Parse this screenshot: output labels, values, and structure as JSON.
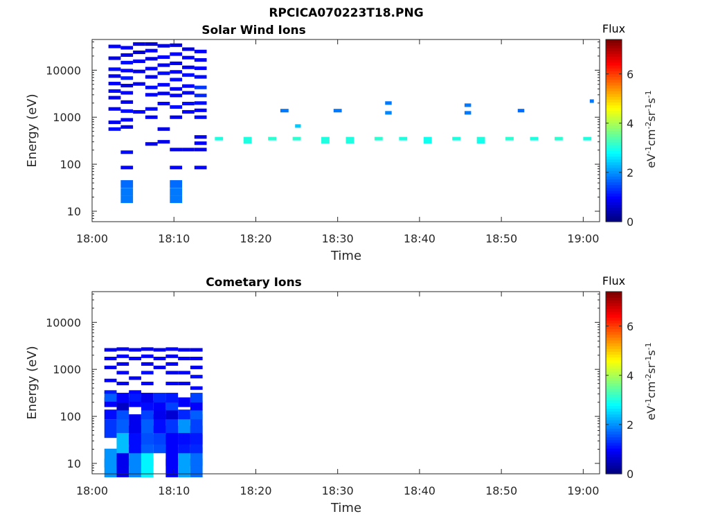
{
  "figure": {
    "title": "RPCICA070223T18.PNG"
  },
  "colorbar": {
    "label_top": "Flux",
    "unit_label": "eV-1cm-2sr-1s-1",
    "unit_parts": [
      {
        "text": "eV",
        "sup": false
      },
      {
        "text": "-1",
        "sup": true
      },
      {
        "text": "cm",
        "sup": false
      },
      {
        "text": "-2",
        "sup": true
      },
      {
        "text": "sr",
        "sup": false
      },
      {
        "text": "-1",
        "sup": true
      },
      {
        "text": "s",
        "sup": false
      },
      {
        "text": "-1",
        "sup": true
      }
    ],
    "range": [
      0,
      7.4
    ],
    "ticks": [
      0,
      2,
      4,
      6
    ],
    "tick_labels": [
      "0",
      "2",
      "4",
      "6"
    ]
  },
  "chart_data": [
    {
      "type": "heatmap",
      "title": "Solar Wind Ions",
      "xlabel": "Time",
      "ylabel": "Energy (eV)",
      "x_unit": "minutes after 18:00",
      "xlim": [
        0,
        62
      ],
      "ylim": [
        6,
        45000
      ],
      "yscale": "log",
      "xticks": [
        0,
        10,
        20,
        30,
        40,
        50,
        60
      ],
      "xtick_labels": [
        "18:00",
        "18:10",
        "18:20",
        "18:30",
        "18:40",
        "18:50",
        "19:00"
      ],
      "yticks": [
        10,
        100,
        1000,
        10000
      ],
      "ytick_labels": [
        "10",
        "100",
        "1000",
        "10000"
      ],
      "cells": [
        [
          2.0,
          3.5,
          560,
          1.0
        ],
        [
          2.0,
          3.5,
          780,
          0.8
        ],
        [
          2.0,
          3.5,
          1500,
          0.9
        ],
        [
          2.0,
          3.5,
          2600,
          0.8
        ],
        [
          2.0,
          3.5,
          3600,
          1.0
        ],
        [
          2.0,
          3.5,
          5200,
          0.9
        ],
        [
          2.0,
          3.5,
          7500,
          0.8
        ],
        [
          2.0,
          3.5,
          10500,
          1.0
        ],
        [
          2.0,
          3.5,
          18000,
          0.7
        ],
        [
          2.0,
          3.5,
          32000,
          0.9
        ],
        [
          3.5,
          5.0,
          18,
          1.8
        ],
        [
          3.5,
          5.0,
          26,
          1.8
        ],
        [
          3.5,
          5.0,
          38,
          1.7
        ],
        [
          3.5,
          5.0,
          85,
          0.9
        ],
        [
          3.5,
          5.0,
          180,
          1.0
        ],
        [
          3.5,
          5.0,
          620,
          0.8
        ],
        [
          3.5,
          5.0,
          880,
          0.9
        ],
        [
          3.5,
          5.0,
          1350,
          1.0
        ],
        [
          3.5,
          5.0,
          2100,
          0.8
        ],
        [
          3.5,
          5.0,
          3300,
          0.9
        ],
        [
          3.5,
          5.0,
          4700,
          0.7
        ],
        [
          3.5,
          5.0,
          6800,
          1.1
        ],
        [
          3.5,
          5.0,
          9800,
          0.9
        ],
        [
          3.5,
          5.0,
          14500,
          1.0
        ],
        [
          3.5,
          5.0,
          21000,
          0.8
        ],
        [
          3.5,
          5.0,
          30000,
          0.9
        ],
        [
          5.0,
          6.5,
          1300,
          0.9
        ],
        [
          5.0,
          6.5,
          5100,
          0.8
        ],
        [
          5.0,
          6.5,
          9400,
          0.7
        ],
        [
          5.0,
          6.5,
          15500,
          0.8
        ],
        [
          5.0,
          6.5,
          24000,
          0.6
        ],
        [
          5.0,
          6.5,
          36000,
          0.7
        ],
        [
          6.5,
          8.0,
          270,
          0.8
        ],
        [
          6.5,
          8.0,
          1000,
          0.9
        ],
        [
          6.5,
          8.0,
          1500,
          1.0
        ],
        [
          6.5,
          8.0,
          3000,
          0.9
        ],
        [
          6.5,
          8.0,
          4300,
          1.0
        ],
        [
          6.5,
          8.0,
          7200,
          0.8
        ],
        [
          6.5,
          8.0,
          10800,
          0.9
        ],
        [
          6.5,
          8.0,
          17500,
          0.7
        ],
        [
          6.5,
          8.0,
          26000,
          0.9
        ],
        [
          6.5,
          8.0,
          36000,
          0.6
        ],
        [
          8.0,
          9.5,
          300,
          0.8
        ],
        [
          8.0,
          9.5,
          560,
          0.7
        ],
        [
          8.0,
          9.5,
          1950,
          0.9
        ],
        [
          8.0,
          9.5,
          3200,
          0.8
        ],
        [
          8.0,
          9.5,
          4900,
          0.9
        ],
        [
          8.0,
          9.5,
          8600,
          1.0
        ],
        [
          8.0,
          9.5,
          12800,
          0.8
        ],
        [
          8.0,
          9.5,
          19000,
          0.9
        ],
        [
          8.0,
          9.5,
          33000,
          0.7
        ],
        [
          9.5,
          11.0,
          18,
          1.8
        ],
        [
          9.5,
          11.0,
          26,
          1.8
        ],
        [
          9.5,
          11.0,
          38,
          1.7
        ],
        [
          9.5,
          11.0,
          85,
          0.9
        ],
        [
          9.5,
          11.0,
          205,
          0.8
        ],
        [
          9.5,
          11.0,
          1000,
          0.8
        ],
        [
          9.5,
          11.0,
          1650,
          1.0
        ],
        [
          9.5,
          11.0,
          2900,
          0.9
        ],
        [
          9.5,
          11.0,
          4000,
          0.8
        ],
        [
          9.5,
          11.0,
          6300,
          1.0
        ],
        [
          9.5,
          11.0,
          9200,
          0.9
        ],
        [
          9.5,
          11.0,
          14000,
          0.8
        ],
        [
          9.5,
          11.0,
          22000,
          0.9
        ],
        [
          9.5,
          11.0,
          34000,
          0.7
        ],
        [
          11.0,
          12.5,
          205,
          0.8
        ],
        [
          11.0,
          12.5,
          1300,
          0.9
        ],
        [
          11.0,
          12.5,
          1950,
          1.0
        ],
        [
          11.0,
          12.5,
          3300,
          0.8
        ],
        [
          11.0,
          12.5,
          4600,
          0.9
        ],
        [
          11.0,
          12.5,
          7900,
          1.0
        ],
        [
          11.0,
          12.5,
          11500,
          0.8
        ],
        [
          11.0,
          12.5,
          18500,
          0.9
        ],
        [
          11.0,
          12.5,
          28000,
          0.7
        ],
        [
          12.5,
          14.0,
          85,
          0.9
        ],
        [
          12.5,
          14.0,
          205,
          0.8
        ],
        [
          12.5,
          14.0,
          280,
          0.9
        ],
        [
          12.5,
          14.0,
          380,
          0.8
        ],
        [
          12.5,
          14.0,
          1000,
          1.0
        ],
        [
          12.5,
          14.0,
          1400,
          0.9
        ],
        [
          12.5,
          14.0,
          2000,
          1.0
        ],
        [
          12.5,
          14.0,
          2900,
          1.2
        ],
        [
          12.5,
          14.0,
          4300,
          1.3
        ],
        [
          12.5,
          14.0,
          7200,
          1.0
        ],
        [
          12.5,
          14.0,
          11000,
          0.9
        ],
        [
          12.5,
          14.0,
          16500,
          0.8
        ],
        [
          12.5,
          14.0,
          25000,
          0.9
        ],
        [
          15.0,
          16.0,
          350,
          3.0
        ],
        [
          18.5,
          19.5,
          350,
          3.0
        ],
        [
          18.5,
          19.5,
          300,
          3.0
        ],
        [
          21.5,
          22.5,
          350,
          3.1
        ],
        [
          24.5,
          25.5,
          350,
          3.1
        ],
        [
          28.0,
          29.0,
          350,
          3.0
        ],
        [
          28.0,
          29.0,
          300,
          3.0
        ],
        [
          31.0,
          32.0,
          350,
          3.0
        ],
        [
          31.0,
          32.0,
          300,
          3.0
        ],
        [
          34.5,
          35.5,
          350,
          3.1
        ],
        [
          37.5,
          38.5,
          350,
          3.0
        ],
        [
          40.5,
          41.5,
          350,
          2.9
        ],
        [
          40.5,
          41.5,
          300,
          2.9
        ],
        [
          44.0,
          45.0,
          350,
          3.0
        ],
        [
          47.0,
          48.0,
          350,
          3.0
        ],
        [
          47.0,
          48.0,
          300,
          2.9
        ],
        [
          50.5,
          51.5,
          350,
          3.1
        ],
        [
          53.5,
          54.5,
          350,
          3.0
        ],
        [
          56.5,
          57.5,
          350,
          3.1
        ],
        [
          60.0,
          61.0,
          350,
          3.0
        ],
        [
          23.0,
          24.0,
          1380,
          1.8
        ],
        [
          24.8,
          25.5,
          650,
          2.4
        ],
        [
          29.5,
          30.5,
          1380,
          1.8
        ],
        [
          35.8,
          36.6,
          2000,
          1.8
        ],
        [
          35.8,
          36.6,
          1240,
          1.9
        ],
        [
          45.5,
          46.3,
          1800,
          1.8
        ],
        [
          45.5,
          46.3,
          1240,
          1.8
        ],
        [
          52.0,
          52.8,
          1380,
          1.7
        ],
        [
          60.8,
          61.3,
          2200,
          1.8
        ]
      ]
    },
    {
      "type": "heatmap",
      "title": "Cometary Ions",
      "xlabel": "Time",
      "ylabel": "Energy (eV)",
      "x_unit": "minutes after 18:00",
      "xlim": [
        0,
        62
      ],
      "ylim": [
        6,
        45000
      ],
      "yscale": "log",
      "xticks": [
        0,
        10,
        20,
        30,
        40,
        50,
        60
      ],
      "xtick_labels": [
        "18:00",
        "18:10",
        "18:20",
        "18:30",
        "18:40",
        "18:50",
        "19:00"
      ],
      "yticks": [
        10,
        100,
        1000,
        10000
      ],
      "ytick_labels": [
        "10",
        "100",
        "1000",
        "10000"
      ],
      "cells": [
        [
          1.5,
          3.0,
          8,
          2.0
        ],
        [
          1.5,
          3.0,
          13,
          2.0
        ],
        [
          1.5,
          3.0,
          55,
          1.3
        ],
        [
          1.5,
          3.0,
          110,
          1.0
        ],
        [
          1.5,
          3.0,
          200,
          0.9
        ],
        [
          1.5,
          3.0,
          260,
          1.6
        ],
        [
          1.5,
          3.0,
          330,
          1.1
        ],
        [
          1.5,
          3.0,
          580,
          0.9
        ],
        [
          1.5,
          3.0,
          1100,
          0.8
        ],
        [
          1.5,
          3.0,
          1700,
          0.9
        ],
        [
          1.5,
          3.0,
          2600,
          0.8
        ],
        [
          3.0,
          4.5,
          8,
          0.8
        ],
        [
          3.0,
          4.5,
          14,
          0.8
        ],
        [
          3.0,
          4.5,
          26,
          2.3
        ],
        [
          3.0,
          4.5,
          40,
          2.3
        ],
        [
          3.0,
          4.5,
          70,
          1.6
        ],
        [
          3.0,
          4.5,
          110,
          1.5
        ],
        [
          3.0,
          4.5,
          170,
          0.5
        ],
        [
          3.0,
          4.5,
          250,
          0.9
        ],
        [
          3.0,
          4.5,
          500,
          0.8
        ],
        [
          3.0,
          4.5,
          850,
          0.9
        ],
        [
          3.0,
          4.5,
          1300,
          0.8
        ],
        [
          3.0,
          4.5,
          1900,
          0.9
        ],
        [
          3.0,
          4.5,
          2700,
          0.8
        ],
        [
          4.5,
          6.0,
          8,
          1.9
        ],
        [
          4.5,
          6.0,
          14,
          1.9
        ],
        [
          4.5,
          6.0,
          26,
          1.0
        ],
        [
          4.5,
          6.0,
          40,
          1.0
        ],
        [
          4.5,
          6.0,
          70,
          0.8
        ],
        [
          4.5,
          6.0,
          200,
          0.9
        ],
        [
          4.5,
          6.0,
          260,
          1.1
        ],
        [
          4.5,
          6.0,
          330,
          0.9
        ],
        [
          4.5,
          6.0,
          650,
          0.8
        ],
        [
          4.5,
          6.0,
          1700,
          0.9
        ],
        [
          4.5,
          6.0,
          2600,
          0.8
        ],
        [
          6.0,
          7.5,
          8,
          2.7
        ],
        [
          6.0,
          7.5,
          14,
          2.7
        ],
        [
          6.0,
          7.5,
          26,
          1.6
        ],
        [
          6.0,
          7.5,
          40,
          1.5
        ],
        [
          6.0,
          7.5,
          70,
          1.6
        ],
        [
          6.0,
          7.5,
          110,
          1.4
        ],
        [
          6.0,
          7.5,
          170,
          1.0
        ],
        [
          6.0,
          7.5,
          250,
          0.8
        ],
        [
          6.0,
          7.5,
          500,
          0.9
        ],
        [
          6.0,
          7.5,
          850,
          1.0
        ],
        [
          6.0,
          7.5,
          1300,
          0.8
        ],
        [
          6.0,
          7.5,
          1900,
          0.9
        ],
        [
          6.0,
          7.5,
          2700,
          0.8
        ],
        [
          7.5,
          9.0,
          26,
          1.5
        ],
        [
          7.5,
          9.0,
          40,
          1.4
        ],
        [
          7.5,
          9.0,
          70,
          1.0
        ],
        [
          7.5,
          9.0,
          110,
          0.8
        ],
        [
          7.5,
          9.0,
          170,
          0.9
        ],
        [
          7.5,
          9.0,
          250,
          1.2
        ],
        [
          7.5,
          9.0,
          1100,
          0.8
        ],
        [
          7.5,
          9.0,
          1700,
          0.9
        ],
        [
          7.5,
          9.0,
          2600,
          0.8
        ],
        [
          9.0,
          10.5,
          8,
          0.9
        ],
        [
          9.0,
          10.5,
          14,
          0.9
        ],
        [
          9.0,
          10.5,
          26,
          0.9
        ],
        [
          9.0,
          10.5,
          40,
          0.9
        ],
        [
          9.0,
          10.5,
          70,
          1.3
        ],
        [
          9.0,
          10.5,
          110,
          0.6
        ],
        [
          9.0,
          10.5,
          170,
          1.4
        ],
        [
          9.0,
          10.5,
          250,
          1.1
        ],
        [
          9.0,
          10.5,
          500,
          0.9
        ],
        [
          9.0,
          10.5,
          850,
          0.8
        ],
        [
          9.0,
          10.5,
          1300,
          0.9
        ],
        [
          9.0,
          10.5,
          1900,
          0.8
        ],
        [
          9.0,
          10.5,
          2700,
          0.9
        ],
        [
          10.5,
          12.0,
          8,
          2.1
        ],
        [
          10.5,
          12.0,
          14,
          2.1
        ],
        [
          10.5,
          12.0,
          26,
          1.1
        ],
        [
          10.5,
          12.0,
          40,
          1.0
        ],
        [
          10.5,
          12.0,
          70,
          2.0
        ],
        [
          10.5,
          12.0,
          110,
          1.2
        ],
        [
          10.5,
          12.0,
          200,
          0.9
        ],
        [
          10.5,
          12.0,
          500,
          0.8
        ],
        [
          10.5,
          12.0,
          850,
          0.9
        ],
        [
          10.5,
          12.0,
          1700,
          0.9
        ],
        [
          10.5,
          12.0,
          2600,
          0.8
        ],
        [
          12.0,
          13.5,
          8,
          1.7
        ],
        [
          12.0,
          13.5,
          14,
          1.7
        ],
        [
          12.0,
          13.5,
          26,
          1.2
        ],
        [
          12.0,
          13.5,
          40,
          1.1
        ],
        [
          12.0,
          13.5,
          70,
          1.4
        ],
        [
          12.0,
          13.5,
          110,
          1.6
        ],
        [
          12.0,
          13.5,
          170,
          0.9
        ],
        [
          12.0,
          13.5,
          250,
          1.4
        ],
        [
          12.0,
          13.5,
          400,
          0.9
        ],
        [
          12.0,
          13.5,
          700,
          1.0
        ],
        [
          12.0,
          13.5,
          1100,
          0.8
        ],
        [
          12.0,
          13.5,
          1700,
          0.9
        ],
        [
          12.0,
          13.5,
          2600,
          0.8
        ]
      ]
    }
  ]
}
